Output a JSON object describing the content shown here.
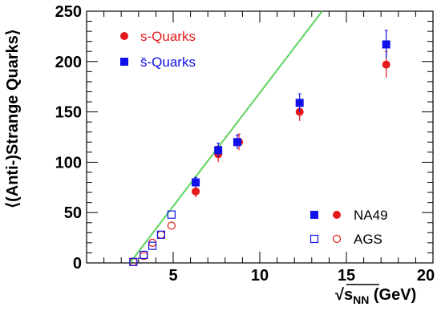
{
  "chart_data": {
    "type": "scatter",
    "xlabel": "√s_NN (GeV)",
    "ylabel": "⟨(Anti-)Strange Quarks⟩",
    "xlim": [
      0,
      20
    ],
    "ylim": [
      0,
      250
    ],
    "x_ticks": [
      "5",
      "10",
      "15",
      "20"
    ],
    "y_ticks": [
      "0",
      "50",
      "100",
      "150",
      "200",
      "250"
    ],
    "grid": false,
    "series": [
      {
        "name": "s-Quarks",
        "experiment": "NA49",
        "marker": "filled-circle",
        "color": "#e41a1c",
        "points": [
          {
            "x": 6.3,
            "y": 71,
            "err": 6
          },
          {
            "x": 7.6,
            "y": 108,
            "err": 8
          },
          {
            "x": 8.8,
            "y": 120,
            "err": 8
          },
          {
            "x": 12.3,
            "y": 150,
            "err": 9
          },
          {
            "x": 17.3,
            "y": 197,
            "err": 13
          }
        ]
      },
      {
        "name": "s̄-Quarks",
        "experiment": "NA49",
        "marker": "filled-square",
        "color": "#1010e8",
        "points": [
          {
            "x": 6.3,
            "y": 80,
            "err": 5
          },
          {
            "x": 7.6,
            "y": 112,
            "err": 7
          },
          {
            "x": 8.7,
            "y": 120,
            "err": 7
          },
          {
            "x": 12.3,
            "y": 159,
            "err": 9
          },
          {
            "x": 17.3,
            "y": 217,
            "err": 14
          }
        ]
      },
      {
        "name": "s-Quarks",
        "experiment": "AGS",
        "marker": "open-circle",
        "color": "#e41a1c",
        "points": [
          {
            "x": 2.7,
            "y": 1
          },
          {
            "x": 3.3,
            "y": 7
          },
          {
            "x": 3.8,
            "y": 20
          },
          {
            "x": 4.3,
            "y": 28
          },
          {
            "x": 4.9,
            "y": 37
          }
        ]
      },
      {
        "name": "s̄-Quarks",
        "experiment": "AGS",
        "marker": "open-square",
        "color": "#1010e8",
        "points": [
          {
            "x": 2.7,
            "y": 1
          },
          {
            "x": 3.3,
            "y": 8
          },
          {
            "x": 3.8,
            "y": 17
          },
          {
            "x": 4.3,
            "y": 28
          },
          {
            "x": 4.9,
            "y": 48
          }
        ]
      }
    ],
    "fit_line": {
      "color": "#5fd35f",
      "points": [
        {
          "x": 2.5,
          "y": 0
        },
        {
          "x": 13.6,
          "y": 250
        }
      ]
    },
    "legend_top": [
      {
        "label": "s-Quarks",
        "marker": "filled-circle",
        "color": "#e41a1c"
      },
      {
        "label": "s̄-Quarks",
        "marker": "filled-square",
        "color": "#1010e8"
      }
    ],
    "legend_bottom": [
      {
        "label": "NA49",
        "markers": [
          "filled-square",
          "filled-circle"
        ]
      },
      {
        "label": "AGS",
        "markers": [
          "open-square",
          "open-circle"
        ]
      }
    ]
  }
}
